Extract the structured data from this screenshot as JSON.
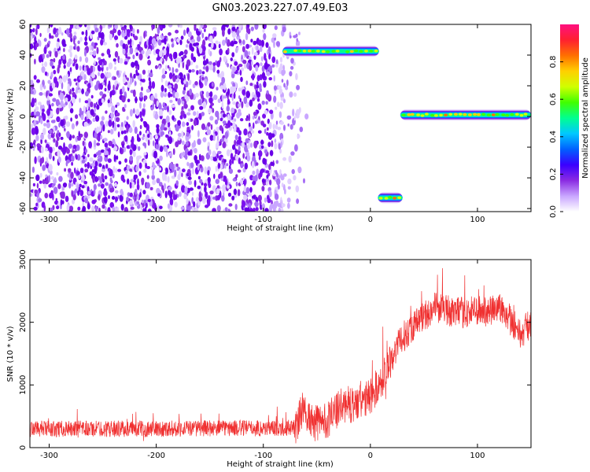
{
  "title": "GN03.2023.227.07.49.E03",
  "colors": {
    "snr_line": "#f03030",
    "scatter": "#7a10f0",
    "colormap": [
      "#ffffff",
      "#c9a6ff",
      "#8a2be2",
      "#3a00ff",
      "#0060ff",
      "#00c8ff",
      "#00ff90",
      "#40ff00",
      "#d0ff00",
      "#ffd000",
      "#ff7000",
      "#ff2030",
      "#ff1080"
    ]
  },
  "chart_data": [
    {
      "type": "heatmap",
      "xlabel": "Height of straight line (km)",
      "ylabel": "Frequency (Hz)",
      "xlim": [
        -318,
        150
      ],
      "ylim": [
        -62,
        60
      ],
      "xticks": [
        -300,
        -200,
        -100,
        0,
        100
      ],
      "yticks": [
        60,
        40,
        20,
        0,
        -20,
        -40,
        -60
      ],
      "grid": false,
      "colorbar": {
        "label": "Normalized spectral amplitude",
        "range": [
          0,
          1
        ],
        "ticks": [
          "0.0",
          "0.2",
          "0.4",
          "0.6",
          "0.8"
        ],
        "tick_values": [
          0,
          0.2,
          0.4,
          0.6,
          0.8
        ]
      },
      "features": [
        {
          "kind": "noise",
          "x": [
            -318,
            -58
          ],
          "y": [
            -62,
            60
          ],
          "amplitude": 0.25
        },
        {
          "kind": "band",
          "x": [
            -82,
            8
          ],
          "y": [
            41,
            44
          ],
          "amplitude": 0.75
        },
        {
          "kind": "band",
          "x": [
            7,
            30
          ],
          "y": [
            -53,
            -53
          ],
          "amplitude": 0.85
        },
        {
          "kind": "band",
          "x": [
            28,
            150
          ],
          "y": [
            1,
            1
          ],
          "amplitude": 0.8
        }
      ]
    },
    {
      "type": "line",
      "xlabel": "Height of straight line (km)",
      "ylabel": "SNR (10 * v/v)",
      "xlim": [
        -318,
        150
      ],
      "ylim": [
        0,
        3000
      ],
      "xticks": [
        -300,
        -200,
        -100,
        0,
        100
      ],
      "yticks": [
        0,
        1000,
        2000,
        3000
      ],
      "grid": false,
      "series": [
        {
          "x": [
            -318,
            -300,
            -250,
            -200,
            -150,
            -100,
            -70,
            -62,
            -55,
            -40,
            -25,
            -10,
            0,
            10,
            20,
            30,
            40,
            50,
            60,
            70,
            80,
            90,
            100,
            110,
            120,
            130,
            140,
            150
          ],
          "y": [
            300,
            300,
            300,
            300,
            310,
            310,
            320,
            650,
            380,
            450,
            680,
            700,
            820,
            1050,
            1450,
            1750,
            1950,
            2100,
            2250,
            2200,
            2150,
            2150,
            2200,
            2150,
            2250,
            2100,
            1800,
            2000
          ]
        }
      ]
    }
  ]
}
